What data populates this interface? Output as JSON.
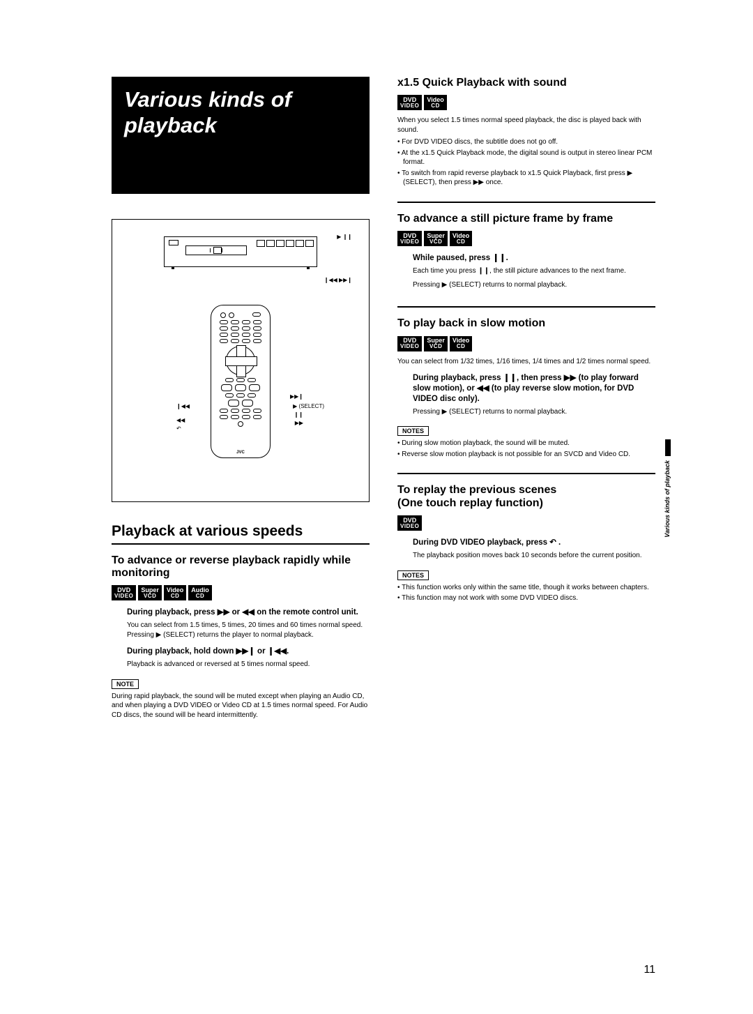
{
  "page_number": "11",
  "side_tab": "Various kinds of playback",
  "title": "Various kinds of playback",
  "diagram": {
    "brand": "JVC",
    "playpause_sym": "▶ ❙❙",
    "prevnext_sym": "❙◀◀ ▶▶❙",
    "remote": {
      "lbl_next": "▶▶❙",
      "lbl_select": "▶ (SELECT)",
      "lbl_pause": "❙❙",
      "lbl_ff": "▶▶",
      "lbl_prev": "❙◀◀",
      "lbl_rw": "◀◀",
      "lbl_replay": "↶"
    }
  },
  "left": {
    "h2": "Playback at various speeds",
    "h3": "To advance or reverse playback rapidly while monitoring",
    "badges": [
      {
        "l1": "DVD",
        "l2": "VIDEO"
      },
      {
        "l1": "Super",
        "l2": "VCD"
      },
      {
        "l1": "Video",
        "l2": "CD"
      },
      {
        "l1": "Audio",
        "l2": "CD"
      }
    ],
    "inst1": "During playback, press ▶▶ or ◀◀ on the remote control unit.",
    "body1": "You can select from 1.5 times, 5 times, 20 times and 60 times normal speed. Pressing ▶ (SELECT) returns the player to normal playback.",
    "inst2": "During playback, hold down ▶▶❙ or ❙◀◀.",
    "body2": "Playback is advanced or reversed at 5 times normal speed.",
    "note_label": "NOTE",
    "note": "During rapid playback, the sound will be muted except when playing an Audio CD, and when playing a DVD VIDEO or Video CD at 1.5 times normal speed. For Audio CD discs, the sound will be heard intermittently."
  },
  "right": {
    "s1": {
      "h3": "x1.5 Quick Playback with sound",
      "badges": [
        {
          "l1": "DVD",
          "l2": "VIDEO"
        },
        {
          "l1": "Video",
          "l2": "CD"
        }
      ],
      "body": "When you select 1.5 times normal speed playback, the disc is played back with sound.",
      "bullets": [
        "For DVD VIDEO discs, the subtitle does not go off.",
        "At the x1.5 Quick Playback mode, the digital sound is output in stereo linear PCM format.",
        "To switch from rapid reverse playback to x1.5 Quick Playback, first press ▶ (SELECT), then press ▶▶ once."
      ]
    },
    "s2": {
      "h3": "To advance a still picture frame by frame",
      "badges": [
        {
          "l1": "DVD",
          "l2": "VIDEO"
        },
        {
          "l1": "Super",
          "l2": "VCD"
        },
        {
          "l1": "Video",
          "l2": "CD"
        }
      ],
      "inst": "While paused, press ❙❙.",
      "body1": "Each time you press ❙❙, the still picture advances to the next frame.",
      "body2": "Pressing ▶ (SELECT) returns to normal playback."
    },
    "s3": {
      "h3": "To play back in slow motion",
      "badges": [
        {
          "l1": "DVD",
          "l2": "VIDEO"
        },
        {
          "l1": "Super",
          "l2": "VCD"
        },
        {
          "l1": "Video",
          "l2": "CD"
        }
      ],
      "body1": "You can select from 1/32 times, 1/16 times, 1/4 times and 1/2 times normal speed.",
      "inst": "During playback, press ❙❙, then press ▶▶ (to play forward slow motion), or ◀◀ (to play reverse slow motion, for DVD VIDEO disc only).",
      "body2": "Pressing ▶ (SELECT) returns to normal playback.",
      "note_label": "NOTES",
      "notes": [
        "During slow motion playback, the sound will be muted.",
        "Reverse slow motion playback is not possible for an SVCD and Video CD."
      ]
    },
    "s4": {
      "h3": "To replay the previous scenes\n(One touch replay function)",
      "badges": [
        {
          "l1": "DVD",
          "l2": "VIDEO"
        }
      ],
      "inst": "During DVD VIDEO playback, press ↶ .",
      "body": "The playback position moves back 10 seconds before the current position.",
      "note_label": "NOTES",
      "notes": [
        "This function works only within the same title, though it works between chapters.",
        "This function may not work with some DVD VIDEO discs."
      ]
    }
  }
}
